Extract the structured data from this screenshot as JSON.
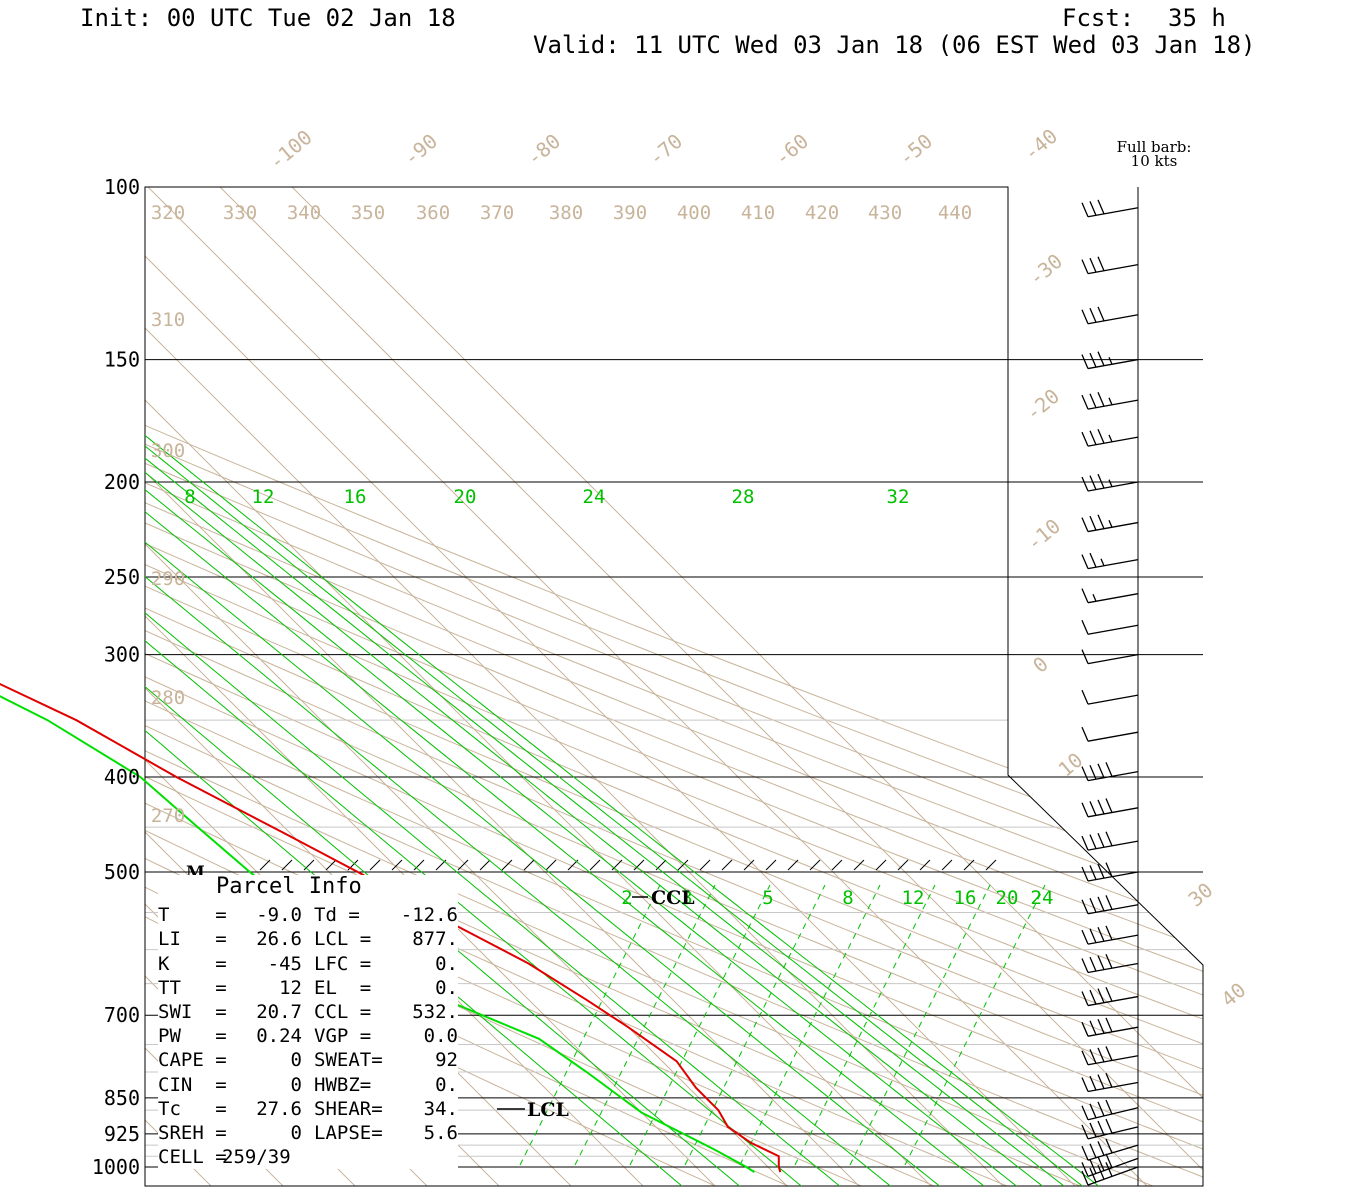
{
  "header": {
    "init": "Init: 00 UTC Tue 02 Jan 18",
    "fcst_label": "Fcst:",
    "fcst_value": "35 h",
    "valid": "Valid: 11 UTC Wed 03 Jan 18 (06 EST Wed 03 Jan 18)"
  },
  "legend": {
    "barb_line1": "Full barb:",
    "barb_line2": "10 kts"
  },
  "parcel": {
    "title": "Parcel Info",
    "rows": [
      {
        "l1": "T",
        "v1": "-9.0",
        "l2": "Td =",
        "v2": "-12.6"
      },
      {
        "l1": "LI",
        "v1": "26.6",
        "l2": "LCL =",
        "v2": "877."
      },
      {
        "l1": "K",
        "v1": "-45",
        "l2": "LFC =",
        "v2": "0."
      },
      {
        "l1": "TT",
        "v1": "12",
        "l2": "EL  =",
        "v2": "0."
      },
      {
        "l1": "SWI",
        "v1": "20.7",
        "l2": "CCL =",
        "v2": "532."
      },
      {
        "l1": "PW",
        "v1": "0.24",
        "l2": "VGP =",
        "v2": "0.0"
      },
      {
        "l1": "CAPE",
        "v1": "0",
        "l2": "SWEAT=",
        "v2": "92"
      },
      {
        "l1": "CIN",
        "v1": "0",
        "l2": "HWBZ=",
        "v2": "0."
      },
      {
        "l1": "Tc",
        "v1": "27.6",
        "l2": "SHEAR=",
        "v2": "34."
      },
      {
        "l1": "SREH",
        "v1": "0",
        "l2": "LAPSE=",
        "v2": "5.6"
      },
      {
        "l1": "CELL",
        "v1": "259/39",
        "l2": "",
        "v2": ""
      }
    ]
  },
  "chart_data": {
    "type": "line",
    "title": "",
    "pressure_levels_labeled": [
      100,
      150,
      200,
      250,
      300,
      400,
      500,
      700,
      850,
      925,
      1000
    ],
    "isotherm_labels": [
      "-100",
      "-90",
      "-80",
      "-70",
      "-60",
      "-50",
      "-40",
      "-30",
      "-20",
      "-10",
      "0",
      "10",
      "30",
      "40"
    ],
    "theta_labels": [
      "320",
      "330",
      "340",
      "350",
      "360",
      "370",
      "380",
      "390",
      "400",
      "410",
      "420",
      "430",
      "440",
      "310",
      "300",
      "290",
      "280",
      "270"
    ],
    "mixing_ratio_labels_upper": [
      "8",
      "12",
      "16",
      "20",
      "24",
      "28",
      "32"
    ],
    "mixing_ratio_labels_lower": [
      "2",
      "3",
      "5",
      "8",
      "12",
      "16",
      "20",
      "24"
    ],
    "markers": {
      "ccl": "CCL",
      "lcl": "LCL",
      "moist": "M"
    },
    "series": [
      {
        "values": [
          {
            "p": 110,
            "T": -50
          },
          {
            "p": 125,
            "T": -55
          },
          {
            "p": 140,
            "T": -59
          },
          {
            "p": 160,
            "T": -61
          },
          {
            "p": 185,
            "T": -60
          },
          {
            "p": 215,
            "T": -59
          },
          {
            "p": 245,
            "T": -59
          },
          {
            "p": 265,
            "T": -58
          },
          {
            "p": 285,
            "T": -56
          },
          {
            "p": 310,
            "T": -52
          },
          {
            "p": 350,
            "T": -44
          },
          {
            "p": 400,
            "T": -38
          },
          {
            "p": 455,
            "T": -31
          },
          {
            "p": 500,
            "T": -26
          },
          {
            "p": 565,
            "T": -20
          },
          {
            "p": 620,
            "T": -15
          },
          {
            "p": 675,
            "T": -12
          },
          {
            "p": 720,
            "T": -10
          },
          {
            "p": 780,
            "T": -8
          },
          {
            "p": 830,
            "T": -9
          },
          {
            "p": 875,
            "T": -9
          },
          {
            "p": 910,
            "T": -10
          },
          {
            "p": 945,
            "T": -9
          },
          {
            "p": 975,
            "T": -7
          },
          {
            "p": 1000,
            "T": -8.5
          },
          {
            "p": 1012,
            "T": -9.0
          }
        ]
      },
      {
        "values": [
          {
            "p": 110,
            "T": -88
          },
          {
            "p": 140,
            "T": -84
          },
          {
            "p": 160,
            "T": -82
          },
          {
            "p": 185,
            "T": -76
          },
          {
            "p": 225,
            "T": -68
          },
          {
            "p": 250,
            "T": -64
          },
          {
            "p": 300,
            "T": -57
          },
          {
            "p": 350,
            "T": -48
          },
          {
            "p": 400,
            "T": -43
          },
          {
            "p": 450,
            "T": -42
          },
          {
            "p": 500,
            "T": -41
          },
          {
            "p": 560,
            "T": -39
          },
          {
            "p": 620,
            "T": -36
          },
          {
            "p": 680,
            "T": -31
          },
          {
            "p": 740,
            "T": -24
          },
          {
            "p": 800,
            "T": -22
          },
          {
            "p": 880,
            "T": -20
          },
          {
            "p": 960,
            "T": -15
          },
          {
            "p": 1000,
            "T": -13
          },
          {
            "p": 1012,
            "T": -12.6
          }
        ]
      }
    ],
    "wind_barbs": [
      {
        "p": 105,
        "dir": 285,
        "kt": 30
      },
      {
        "p": 120,
        "dir": 285,
        "kt": 30
      },
      {
        "p": 135,
        "dir": 285,
        "kt": 30
      },
      {
        "p": 150,
        "dir": 285,
        "kt": 35
      },
      {
        "p": 165,
        "dir": 285,
        "kt": 35
      },
      {
        "p": 180,
        "dir": 285,
        "kt": 35
      },
      {
        "p": 200,
        "dir": 285,
        "kt": 35
      },
      {
        "p": 220,
        "dir": 285,
        "kt": 35
      },
      {
        "p": 240,
        "dir": 285,
        "kt": 25
      },
      {
        "p": 260,
        "dir": 285,
        "kt": 15
      },
      {
        "p": 280,
        "dir": 285,
        "kt": 10
      },
      {
        "p": 300,
        "dir": 285,
        "kt": 10
      },
      {
        "p": 330,
        "dir": 285,
        "kt": 10
      },
      {
        "p": 360,
        "dir": 285,
        "kt": 10
      },
      {
        "p": 395,
        "dir": 285,
        "kt": 40
      },
      {
        "p": 430,
        "dir": 285,
        "kt": 40
      },
      {
        "p": 465,
        "dir": 285,
        "kt": 40
      },
      {
        "p": 500,
        "dir": 285,
        "kt": 40
      },
      {
        "p": 540,
        "dir": 285,
        "kt": 40
      },
      {
        "p": 580,
        "dir": 285,
        "kt": 40
      },
      {
        "p": 620,
        "dir": 285,
        "kt": 40
      },
      {
        "p": 670,
        "dir": 285,
        "kt": 40
      },
      {
        "p": 720,
        "dir": 285,
        "kt": 40
      },
      {
        "p": 770,
        "dir": 285,
        "kt": 40
      },
      {
        "p": 820,
        "dir": 285,
        "kt": 40
      },
      {
        "p": 870,
        "dir": 290,
        "kt": 40
      },
      {
        "p": 910,
        "dir": 290,
        "kt": 40
      },
      {
        "p": 950,
        "dir": 295,
        "kt": 40
      },
      {
        "p": 980,
        "dir": 300,
        "kt": 40
      },
      {
        "p": 1000,
        "dir": 300,
        "kt": 40
      }
    ],
    "colors": {
      "temperature": "#e00000",
      "dewpoint": "#00e000",
      "mixing_ratio": "#00c000",
      "background_lines": "#c8b49a"
    }
  }
}
